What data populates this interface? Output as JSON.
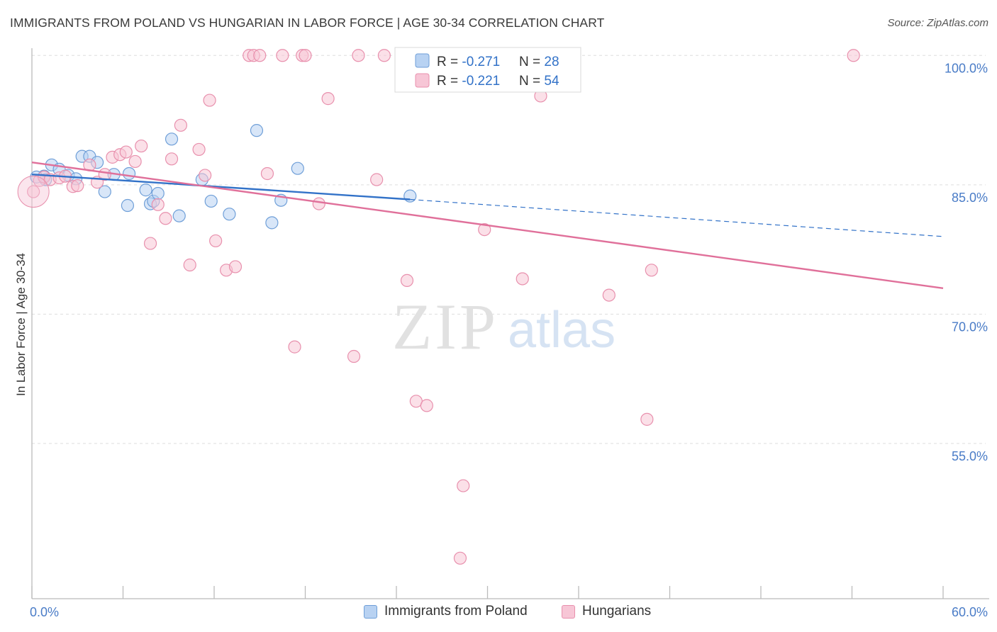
{
  "title": "IMMIGRANTS FROM POLAND VS HUNGARIAN IN LABOR FORCE | AGE 30-34 CORRELATION CHART",
  "source": "Source: ZipAtlas.com",
  "watermark": {
    "zip": "ZIP",
    "atlas": "atlas"
  },
  "colors": {
    "blue_fill": "#b8d2f2",
    "blue_stroke": "#6f9fd8",
    "blue_line": "#3272c8",
    "pink_fill": "#f7c6d6",
    "pink_stroke": "#e890ad",
    "pink_line": "#e0709a",
    "tick_label": "#4a7cc7",
    "grid": "#dddddd"
  },
  "legend": {
    "rows": [
      {
        "r_label": "R = ",
        "r_value": "-0.271",
        "n_label": "N = ",
        "n_value": "28",
        "series": "blue"
      },
      {
        "r_label": "R = ",
        "r_value": "-0.221",
        "n_label": "N = ",
        "n_value": "54",
        "series": "pink"
      }
    ]
  },
  "bottom_legend": [
    {
      "label": "Immigrants from Poland",
      "series": "blue"
    },
    {
      "label": "Hungarians",
      "series": "pink"
    }
  ],
  "chart_data": {
    "type": "scatter",
    "title": "IMMIGRANTS FROM POLAND VS HUNGARIAN IN LABOR FORCE | AGE 30-34 CORRELATION CHART",
    "xlabel": "",
    "ylabel": "In Labor Force | Age 30-34",
    "xlim": [
      0,
      60
    ],
    "ylim": [
      37,
      101.5
    ],
    "x_tick_labels": [
      "0.0%",
      "60.0%"
    ],
    "y_ticks": [
      55,
      70,
      85,
      100
    ],
    "y_tick_labels": [
      "55.0%",
      "70.0%",
      "85.0%",
      "100.0%"
    ],
    "grid": true,
    "series": [
      {
        "name": "Immigrants from Poland",
        "color": "blue",
        "trend": {
          "x0": 0,
          "y0": 86.2,
          "x1": 24.9,
          "y1": 83.3,
          "dash_to_x": 60,
          "dash_to_y": 79.0
        },
        "points": [
          [
            0.8,
            86.0
          ],
          [
            1.3,
            87.3
          ],
          [
            1.8,
            86.8
          ],
          [
            2.4,
            86.1
          ],
          [
            2.9,
            85.7
          ],
          [
            3.3,
            88.3
          ],
          [
            3.8,
            88.3
          ],
          [
            4.3,
            87.6
          ],
          [
            4.8,
            84.2
          ],
          [
            5.4,
            86.2
          ],
          [
            6.4,
            86.3
          ],
          [
            6.3,
            82.6
          ],
          [
            7.5,
            84.4
          ],
          [
            7.8,
            82.8
          ],
          [
            8.0,
            83.1
          ],
          [
            8.3,
            84.0
          ],
          [
            9.2,
            90.3
          ],
          [
            9.7,
            81.4
          ],
          [
            11.2,
            85.6
          ],
          [
            11.8,
            83.1
          ],
          [
            13.0,
            81.6
          ],
          [
            14.8,
            91.3
          ],
          [
            15.8,
            80.6
          ],
          [
            16.4,
            83.2
          ],
          [
            17.5,
            86.9
          ],
          [
            24.9,
            83.7
          ],
          [
            0.3,
            85.9
          ],
          [
            0.9,
            85.6
          ]
        ]
      },
      {
        "name": "Hungarians",
        "color": "pink",
        "trend": {
          "x0": 0,
          "y0": 87.6,
          "x1": 60,
          "y1": 73.0
        },
        "points": [
          [
            0.1,
            84.2
          ],
          [
            0.5,
            85.5
          ],
          [
            0.8,
            85.9
          ],
          [
            1.2,
            85.6
          ],
          [
            1.8,
            85.8
          ],
          [
            2.2,
            86.0
          ],
          [
            2.7,
            84.8
          ],
          [
            3.0,
            84.9
          ],
          [
            3.8,
            87.3
          ],
          [
            4.3,
            85.3
          ],
          [
            4.8,
            86.2
          ],
          [
            5.3,
            88.2
          ],
          [
            5.8,
            88.5
          ],
          [
            6.2,
            88.8
          ],
          [
            6.8,
            87.7
          ],
          [
            7.2,
            89.5
          ],
          [
            7.8,
            78.2
          ],
          [
            8.3,
            82.7
          ],
          [
            8.8,
            81.1
          ],
          [
            9.2,
            88.0
          ],
          [
            9.8,
            91.9
          ],
          [
            10.4,
            75.7
          ],
          [
            11.0,
            89.1
          ],
          [
            11.4,
            86.1
          ],
          [
            11.7,
            94.8
          ],
          [
            12.1,
            78.5
          ],
          [
            12.8,
            75.1
          ],
          [
            13.4,
            75.5
          ],
          [
            14.3,
            100.0
          ],
          [
            14.6,
            100.0
          ],
          [
            15.0,
            100.0
          ],
          [
            15.5,
            86.3
          ],
          [
            16.5,
            100.0
          ],
          [
            17.3,
            66.2
          ],
          [
            17.8,
            100.0
          ],
          [
            18.0,
            100.0
          ],
          [
            18.9,
            82.8
          ],
          [
            19.5,
            95.0
          ],
          [
            21.2,
            65.1
          ],
          [
            21.5,
            100.0
          ],
          [
            22.7,
            85.6
          ],
          [
            23.2,
            100.0
          ],
          [
            24.7,
            73.9
          ],
          [
            25.3,
            59.9
          ],
          [
            26.0,
            59.4
          ],
          [
            28.2,
            41.7
          ],
          [
            28.4,
            50.1
          ],
          [
            29.8,
            79.8
          ],
          [
            32.3,
            74.1
          ],
          [
            33.5,
            95.3
          ],
          [
            38.0,
            72.2
          ],
          [
            40.8,
            75.1
          ],
          [
            40.5,
            57.8
          ],
          [
            54.1,
            100.0
          ]
        ]
      }
    ]
  }
}
